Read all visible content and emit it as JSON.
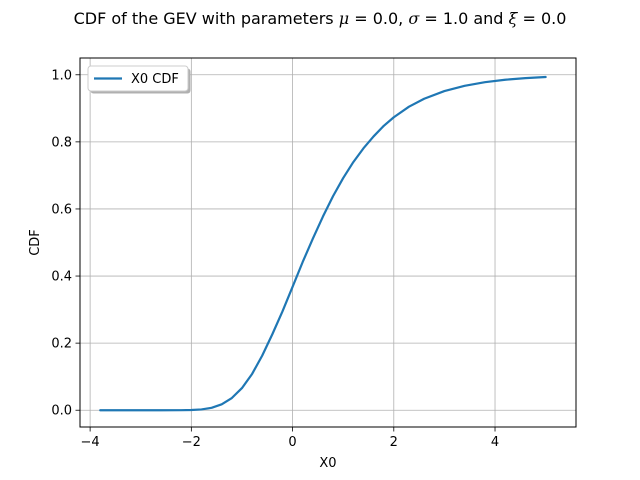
{
  "chart_data": {
    "type": "line",
    "title_prefix": "CDF of the GEV with parameters ",
    "title_params": [
      {
        "symbol": "μ",
        "eq": " = 0.0"
      },
      {
        "symbol": "σ",
        "eq": " = 1.0"
      },
      {
        "symbol": "ξ",
        "eq": " = 0.0"
      }
    ],
    "title_sep": ", ",
    "title_and": " and ",
    "xlabel": "X0",
    "ylabel": "CDF",
    "xlim": [
      -4.2,
      5.6
    ],
    "ylim": [
      -0.05,
      1.05
    ],
    "xticks": [
      -4,
      -2,
      0,
      2,
      4
    ],
    "xtick_labels": [
      "−4",
      "−2",
      "0",
      "2",
      "4"
    ],
    "yticks": [
      0.0,
      0.2,
      0.4,
      0.6,
      0.8,
      1.0
    ],
    "ytick_labels": [
      "0.0",
      "0.2",
      "0.4",
      "0.6",
      "0.8",
      "1.0"
    ],
    "grid": true,
    "legend_position": "top-left",
    "series": [
      {
        "name": "X0 CDF",
        "color": "#1f77b4",
        "x": [
          -3.8,
          -3.4,
          -3.0,
          -2.6,
          -2.2,
          -2.0,
          -1.8,
          -1.6,
          -1.4,
          -1.2,
          -1.0,
          -0.8,
          -0.6,
          -0.4,
          -0.2,
          0.0,
          0.2,
          0.4,
          0.6,
          0.8,
          1.0,
          1.2,
          1.4,
          1.6,
          1.8,
          2.0,
          2.3,
          2.6,
          3.0,
          3.4,
          3.8,
          4.2,
          4.6,
          5.0
        ],
        "y": [
          0.0,
          0.0,
          0.0,
          0.0,
          0.0001,
          0.0006,
          0.0024,
          0.0071,
          0.0176,
          0.0364,
          0.066,
          0.1081,
          0.1627,
          0.2265,
          0.2946,
          0.3679,
          0.4419,
          0.5115,
          0.5774,
          0.6383,
          0.6922,
          0.7397,
          0.7807,
          0.8162,
          0.8475,
          0.8734,
          0.9048,
          0.9286,
          0.9514,
          0.9672,
          0.9779,
          0.9851,
          0.99,
          0.9933
        ]
      }
    ]
  }
}
